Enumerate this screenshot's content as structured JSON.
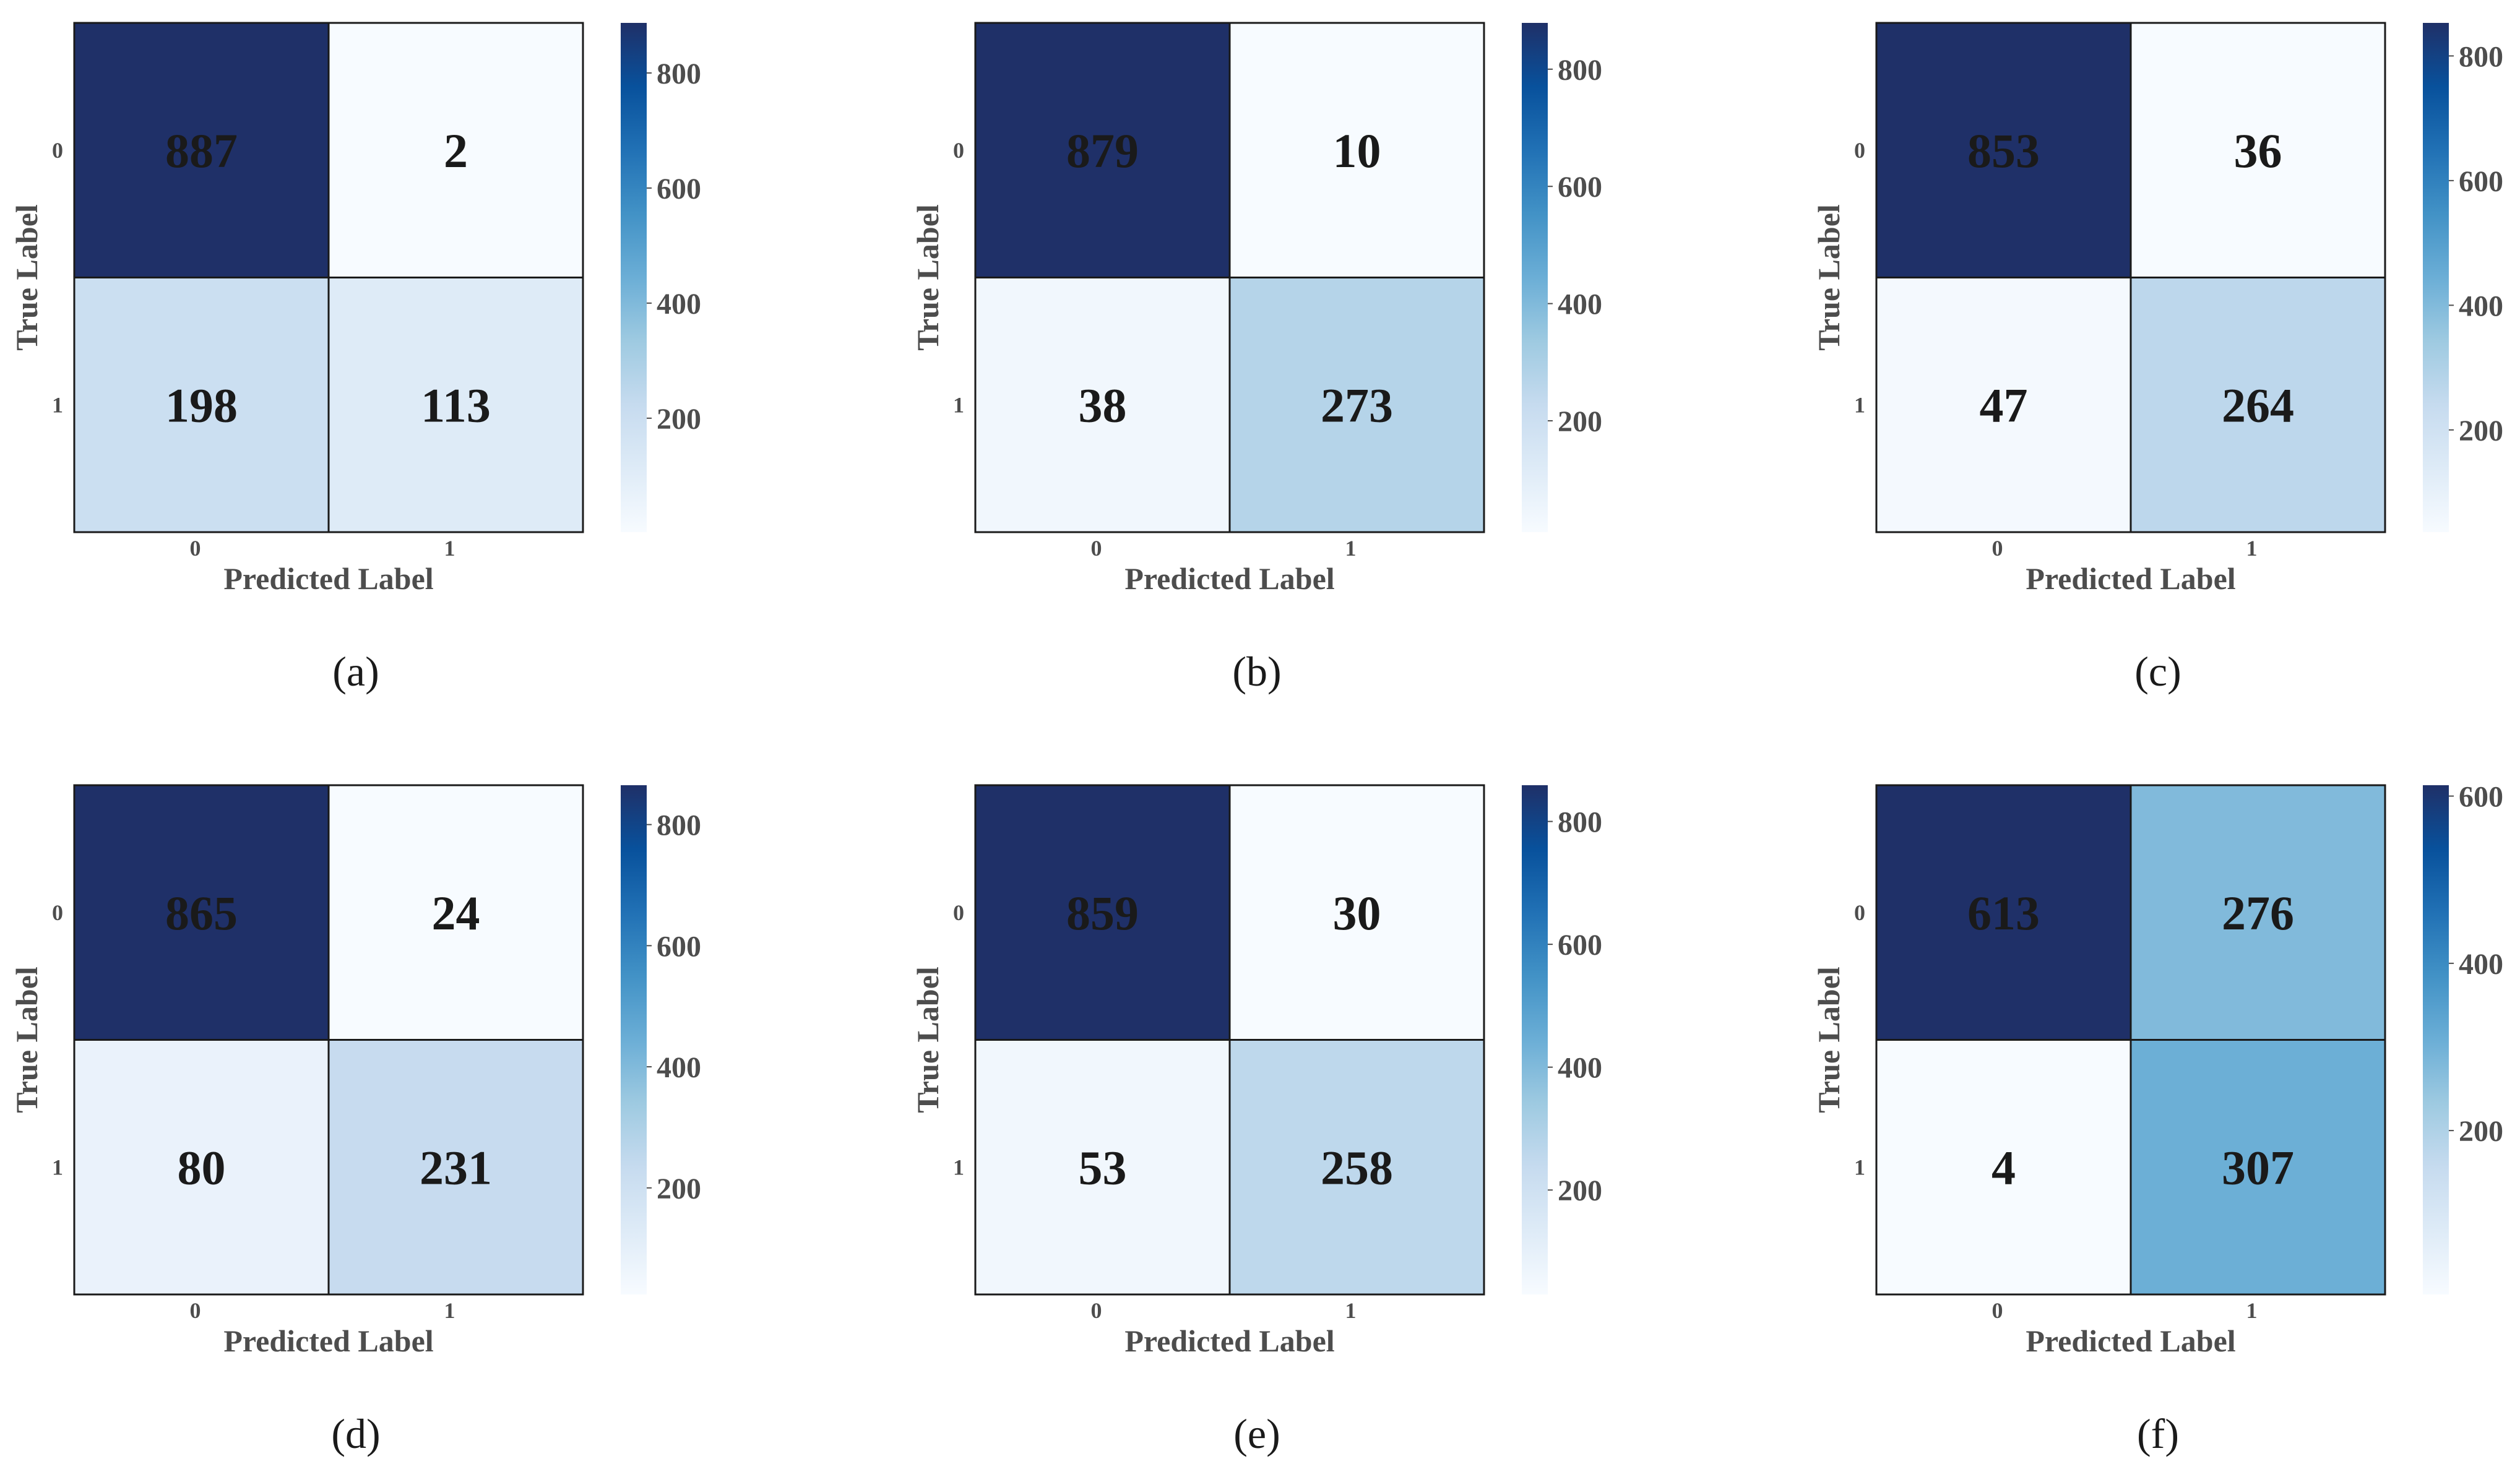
{
  "chart_data": [
    {
      "type": "heatmap",
      "panel_label": "(a)",
      "xlabel": "Predicted Label",
      "ylabel": "True Label",
      "x_categories": [
        "0",
        "1"
      ],
      "y_categories": [
        "0",
        "1"
      ],
      "values": [
        [
          887,
          2
        ],
        [
          198,
          113
        ]
      ],
      "colorbar": {
        "min": 2,
        "max": 887,
        "ticks": [
          200,
          400,
          600,
          800
        ]
      }
    },
    {
      "type": "heatmap",
      "panel_label": "(b)",
      "xlabel": "Predicted Label",
      "ylabel": "True Label",
      "x_categories": [
        "0",
        "1"
      ],
      "y_categories": [
        "0",
        "1"
      ],
      "values": [
        [
          879,
          10
        ],
        [
          38,
          273
        ]
      ],
      "colorbar": {
        "min": 10,
        "max": 879,
        "ticks": [
          200,
          400,
          600,
          800
        ]
      }
    },
    {
      "type": "heatmap",
      "panel_label": "(c)",
      "xlabel": "Predicted Label",
      "ylabel": "True Label",
      "x_categories": [
        "0",
        "1"
      ],
      "y_categories": [
        "0",
        "1"
      ],
      "values": [
        [
          853,
          36
        ],
        [
          47,
          264
        ]
      ],
      "colorbar": {
        "min": 36,
        "max": 853,
        "ticks": [
          200,
          400,
          600,
          800
        ]
      }
    },
    {
      "type": "heatmap",
      "panel_label": "(d)",
      "xlabel": "Predicted Label",
      "ylabel": "True Label",
      "x_categories": [
        "0",
        "1"
      ],
      "y_categories": [
        "0",
        "1"
      ],
      "values": [
        [
          865,
          24
        ],
        [
          80,
          231
        ]
      ],
      "colorbar": {
        "min": 24,
        "max": 865,
        "ticks": [
          200,
          400,
          600,
          800
        ]
      }
    },
    {
      "type": "heatmap",
      "panel_label": "(e)",
      "xlabel": "Predicted Label",
      "ylabel": "True Label",
      "x_categories": [
        "0",
        "1"
      ],
      "y_categories": [
        "0",
        "1"
      ],
      "values": [
        [
          859,
          30
        ],
        [
          53,
          258
        ]
      ],
      "colorbar": {
        "min": 30,
        "max": 859,
        "ticks": [
          200,
          400,
          600,
          800
        ]
      }
    },
    {
      "type": "heatmap",
      "panel_label": "(f)",
      "xlabel": "Predicted Label",
      "ylabel": "True Label",
      "x_categories": [
        "0",
        "1"
      ],
      "y_categories": [
        "0",
        "1"
      ],
      "values": [
        [
          613,
          276
        ],
        [
          4,
          307
        ]
      ],
      "colorbar": {
        "min": 4,
        "max": 613,
        "ticks": [
          200,
          400,
          600
        ]
      }
    }
  ],
  "colormap": [
    "#f7fbff",
    "#deebf7",
    "#c6dbef",
    "#9ecae1",
    "#6baed6",
    "#4292c6",
    "#2171b5",
    "#08519c",
    "#1f3068"
  ]
}
